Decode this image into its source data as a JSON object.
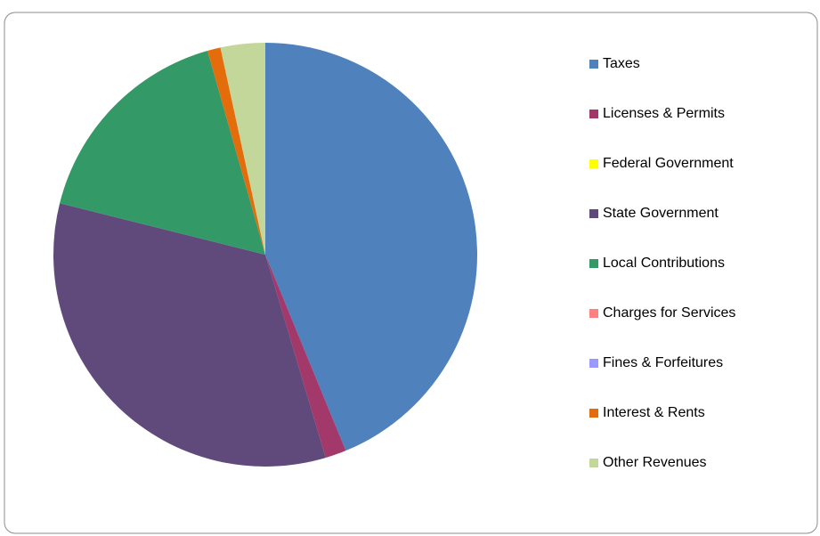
{
  "chart_data": {
    "type": "pie",
    "series": [
      {
        "name": "Taxes",
        "color": "#4f81bd",
        "values": [
          43.8
        ]
      },
      {
        "name": "Licenses & Permits",
        "color": "#a3386a",
        "values": [
          1.6
        ]
      },
      {
        "name": "Federal Government",
        "color": "#ffff00",
        "values": [
          0
        ]
      },
      {
        "name": "State Government",
        "color": "#604a7b",
        "values": [
          33.5
        ]
      },
      {
        "name": "Local Contributions",
        "color": "#339966",
        "values": [
          16.7
        ]
      },
      {
        "name": "Charges for Services",
        "color": "#ff8080",
        "values": [
          0
        ]
      },
      {
        "name": "Fines & Forfeitures",
        "color": "#9999ff",
        "values": [
          0
        ]
      },
      {
        "name": "Interest & Rents",
        "color": "#e46c0a",
        "values": [
          1.0
        ]
      },
      {
        "name": "Other Revenues",
        "color": "#c4d79b",
        "values": [
          3.4
        ]
      }
    ],
    "legend": "right"
  }
}
